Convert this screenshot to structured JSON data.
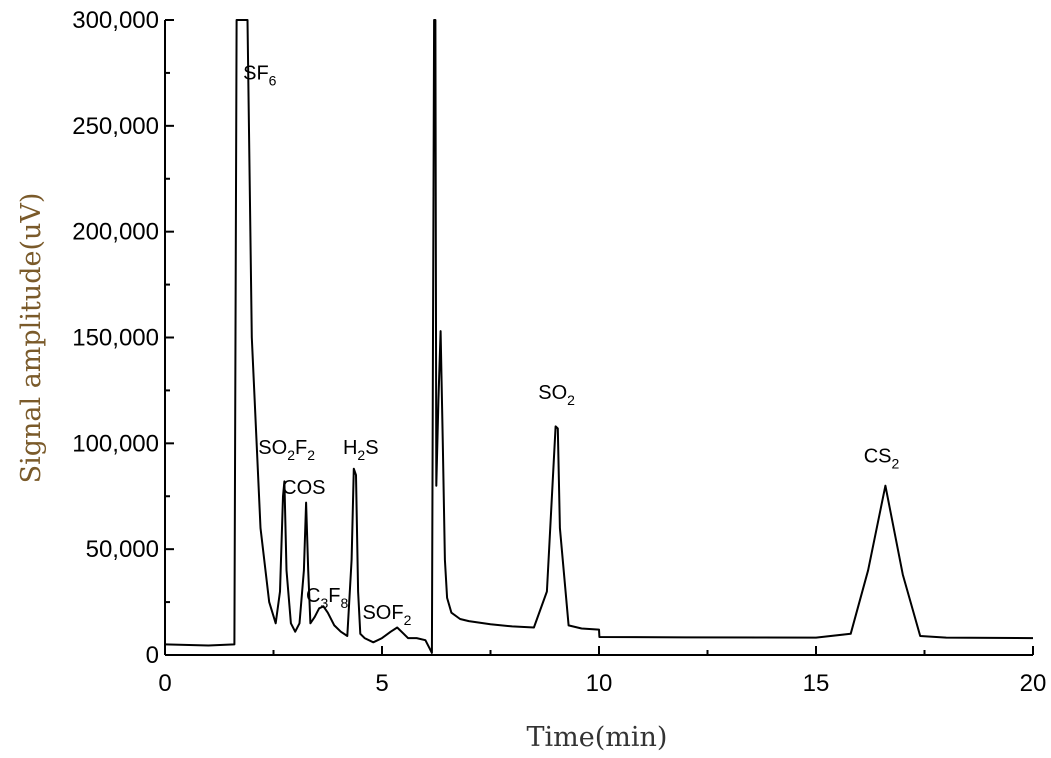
{
  "chart_data": {
    "type": "line",
    "title": "",
    "xlabel": "Time(min)",
    "ylabel": "Signal amplitude(uV)",
    "xlim": [
      0,
      20
    ],
    "ylim": [
      0,
      300000
    ],
    "xticks": [
      0,
      5,
      10,
      15,
      20
    ],
    "xtick_labels": [
      "0",
      "5",
      "10",
      "15",
      "20"
    ],
    "yticks": [
      0,
      50000,
      100000,
      150000,
      200000,
      250000,
      300000
    ],
    "ytick_labels": [
      "0",
      "50,000",
      "100,000",
      "150,000",
      "200,000",
      "250,000",
      "300,000"
    ],
    "grid": false,
    "legend": "none",
    "colors": {
      "line": "#000000",
      "ylabel": "#7a5a2a",
      "xlabel": "#333333"
    },
    "series": [
      {
        "x": [
          0,
          1.0,
          1.6,
          1.65,
          1.72,
          1.85,
          1.9,
          2.0,
          2.2,
          2.4,
          2.55,
          2.65,
          2.72,
          2.75,
          2.8,
          2.9,
          3.0,
          3.1,
          3.2,
          3.25,
          3.3,
          3.35,
          3.45,
          3.55,
          3.65,
          3.75,
          3.9,
          4.05,
          4.2,
          4.3,
          4.35,
          4.4,
          4.45,
          4.5,
          4.6,
          4.8,
          5.0,
          5.2,
          5.35,
          5.5,
          5.6,
          5.8,
          6.0,
          6.1,
          6.15,
          6.2,
          6.23,
          6.25,
          6.3,
          6.35,
          6.4,
          6.45,
          6.5,
          6.6,
          6.8,
          7.0,
          7.5,
          8.0,
          8.5,
          8.8,
          9.0,
          9.05,
          9.1,
          9.3,
          9.6,
          10.0,
          10.01,
          12.0,
          15.0,
          15.8,
          16.2,
          16.6,
          17.0,
          17.4,
          18.0,
          20.0
        ],
        "y": [
          5000,
          4500,
          5000,
          300000,
          300000,
          300000,
          300000,
          150000,
          60000,
          25000,
          15000,
          30000,
          75000,
          82000,
          40000,
          15000,
          11000,
          15000,
          40000,
          72000,
          40000,
          15000,
          18000,
          22000,
          23000,
          20000,
          14000,
          11000,
          9000,
          45000,
          88000,
          85000,
          30000,
          10000,
          8000,
          6000,
          8000,
          11000,
          13000,
          10000,
          8000,
          8000,
          7000,
          3000,
          1000,
          300000,
          300000,
          80000,
          120000,
          153000,
          100000,
          45000,
          27000,
          20000,
          17000,
          16000,
          14500,
          13500,
          13000,
          30000,
          108000,
          107000,
          60000,
          14000,
          12500,
          12000,
          8500,
          8300,
          8200,
          10000,
          40000,
          80000,
          38000,
          9000,
          8200,
          8000
        ]
      }
    ],
    "annotations": [
      {
        "main": "SF",
        "sub": "6",
        "tail": "",
        "x": 1.8,
        "y": 272000
      },
      {
        "main": "SO",
        "sub": "2",
        "tail": "F2",
        "x": 2.15,
        "y": 95000
      },
      {
        "main": "COS",
        "sub": "",
        "tail": "",
        "x": 2.7,
        "y": 76000
      },
      {
        "main": "C",
        "sub": "3",
        "tail": "F8",
        "x": 3.25,
        "y": 25000
      },
      {
        "main": "H",
        "sub": "2",
        "tail": "S",
        "x": 4.1,
        "y": 95000
      },
      {
        "main": "SOF",
        "sub": "2",
        "tail": "",
        "x": 4.55,
        "y": 17000
      },
      {
        "main": "SO",
        "sub": "2",
        "tail": "",
        "x": 8.6,
        "y": 121000
      },
      {
        "main": "CS",
        "sub": "2",
        "tail": "",
        "x": 16.1,
        "y": 91000
      }
    ]
  }
}
